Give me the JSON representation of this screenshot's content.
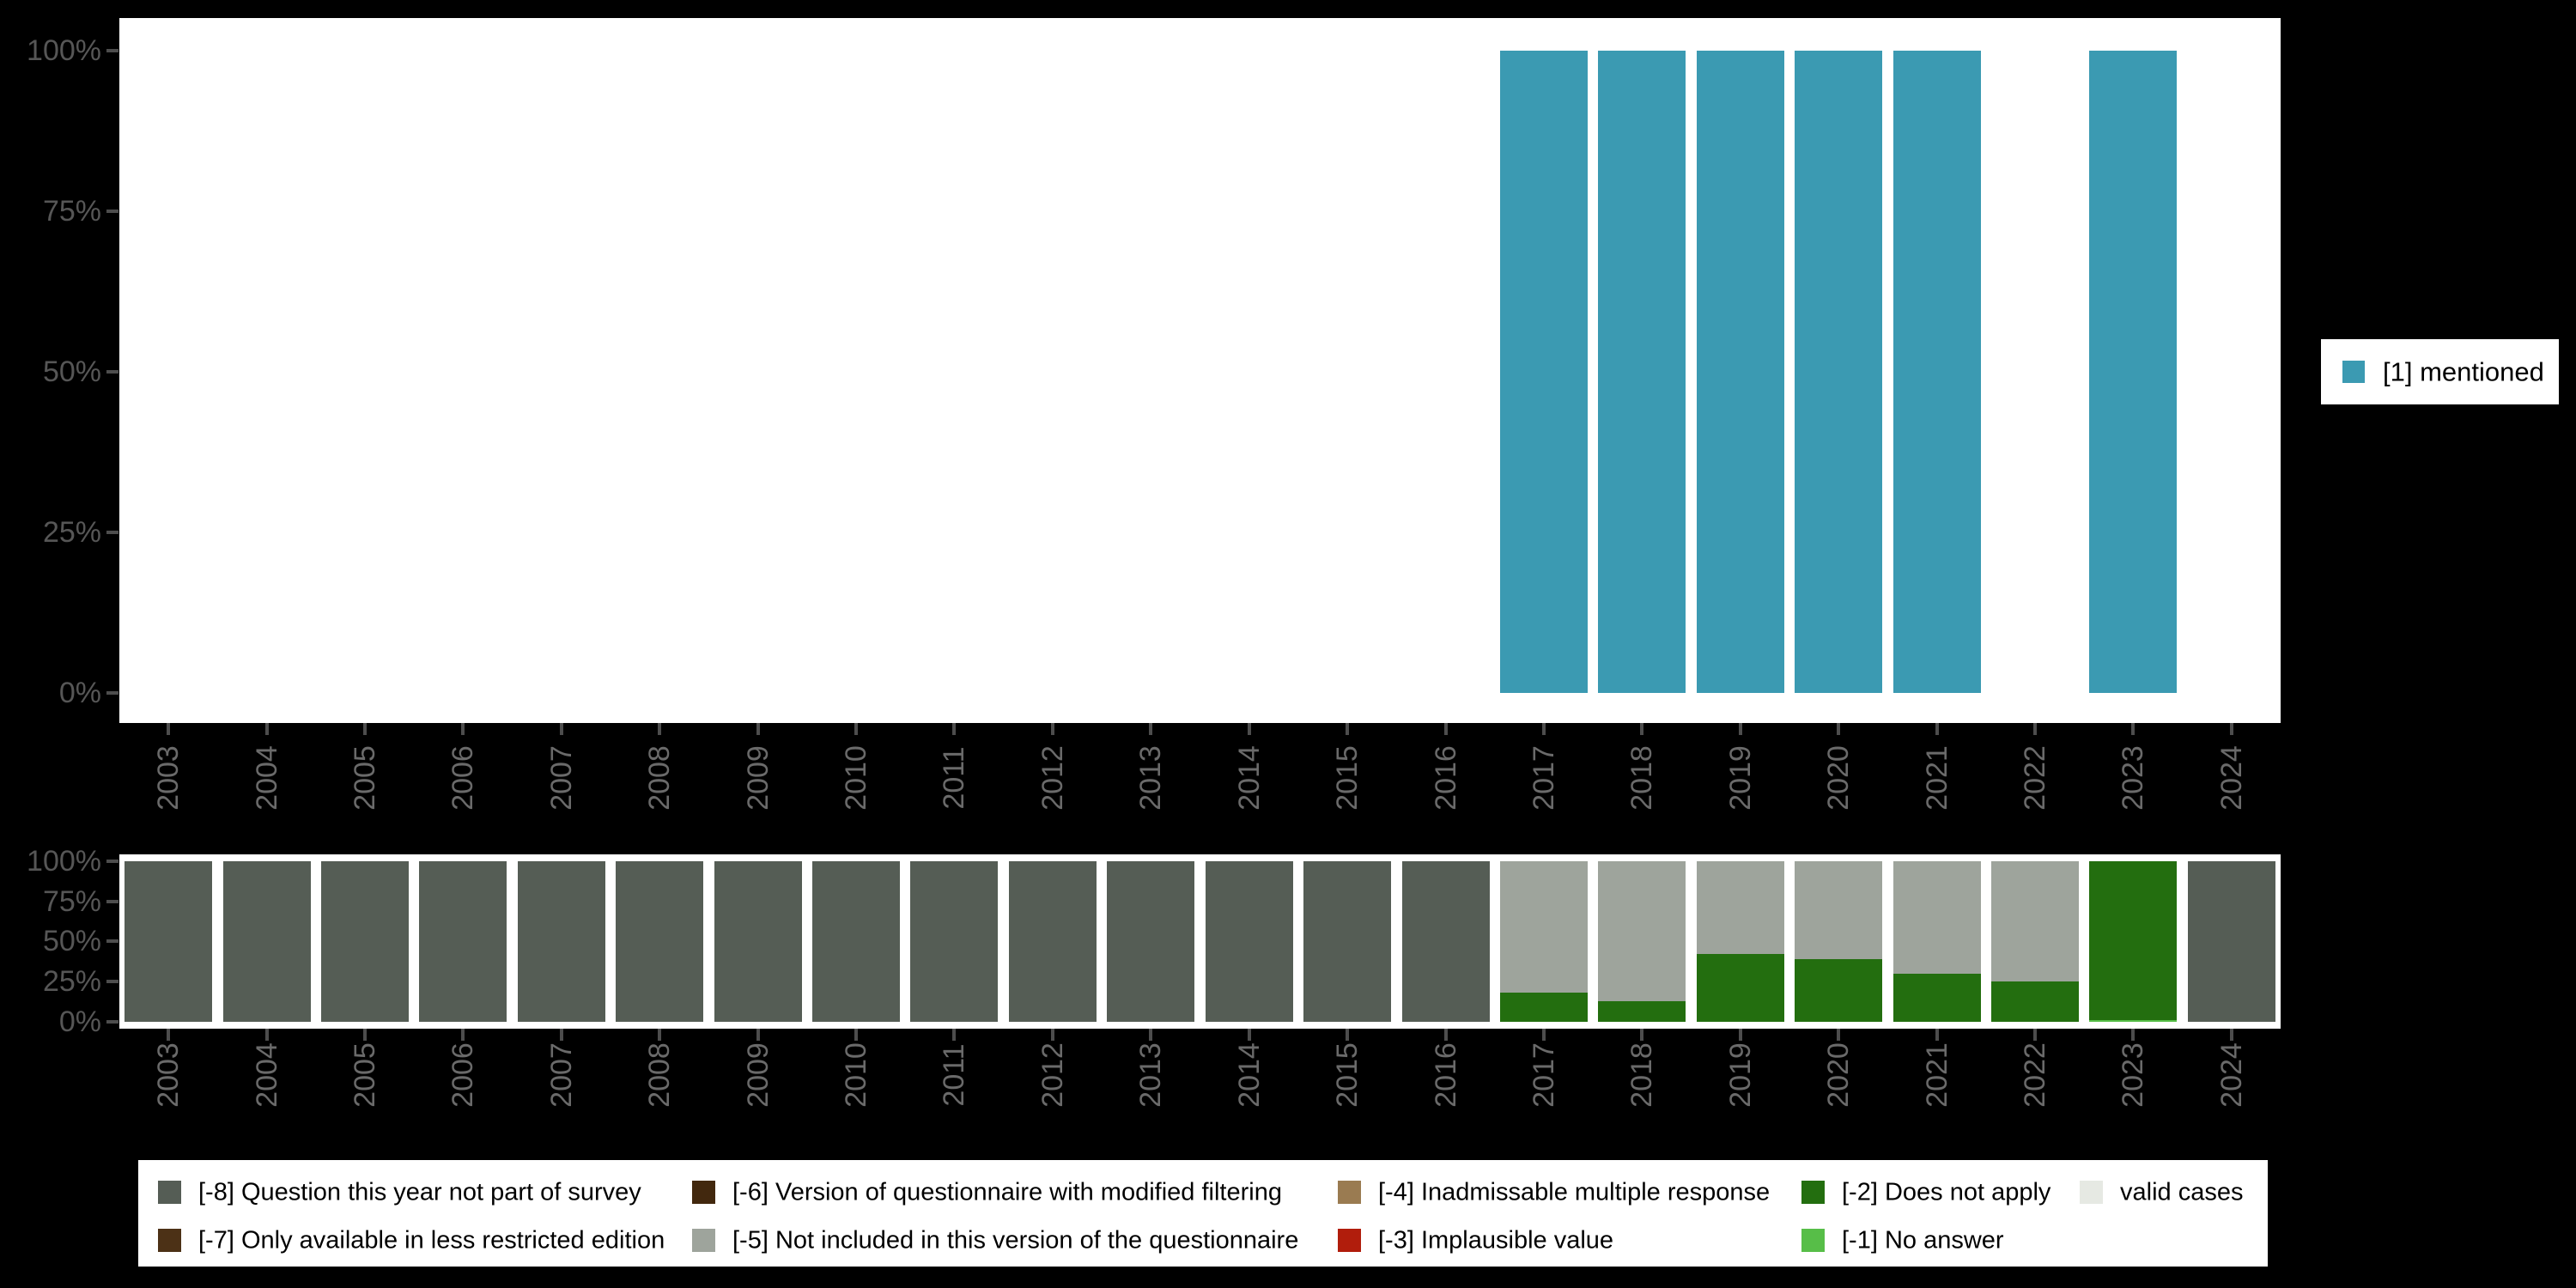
{
  "colors": {
    "background": "#000000",
    "plot_background": "#ffffff",
    "axis_text": "#565656",
    "axis_year_text": "#6a6a6a",
    "tick": "#4d4d4d",
    "mentioned_teal": "#3B9AB2"
  },
  "chart_data": [
    {
      "id": "mentioned-percent-by-year",
      "type": "bar",
      "title": "",
      "xlabel": "",
      "ylabel": "",
      "ylim": [
        0,
        100
      ],
      "yticks": [
        "100%",
        "75%",
        "50%",
        "25%",
        "0%"
      ],
      "grid": false,
      "legend_position": "right",
      "categories": [
        "2003",
        "2004",
        "2005",
        "2006",
        "2007",
        "2008",
        "2009",
        "2010",
        "2011",
        "2012",
        "2013",
        "2014",
        "2015",
        "2016",
        "2017",
        "2018",
        "2019",
        "2020",
        "2021",
        "2022",
        "2023",
        "2024"
      ],
      "series": [
        {
          "name": "[1] mentioned",
          "color": "#3B9AB2",
          "values": [
            0,
            0,
            0,
            0,
            0,
            0,
            0,
            0,
            0,
            0,
            0,
            0,
            0,
            0,
            100,
            100,
            100,
            100,
            100,
            0,
            100,
            0
          ]
        }
      ]
    },
    {
      "id": "missing-values-by-year",
      "type": "stacked-bar",
      "title": "",
      "xlabel": "",
      "ylabel": "",
      "ylim": [
        0,
        100
      ],
      "yticks": [
        "100%",
        "75%",
        "50%",
        "25%",
        "0%"
      ],
      "grid": false,
      "legend_position": "bottom",
      "categories": [
        "2003",
        "2004",
        "2005",
        "2006",
        "2007",
        "2008",
        "2009",
        "2010",
        "2011",
        "2012",
        "2013",
        "2014",
        "2015",
        "2016",
        "2017",
        "2018",
        "2019",
        "2020",
        "2021",
        "2022",
        "2023",
        "2024"
      ],
      "series": [
        {
          "name": "[-8] Question this year not part of survey",
          "color": "#555D55",
          "values": [
            100,
            100,
            100,
            100,
            100,
            100,
            100,
            100,
            100,
            100,
            100,
            100,
            100,
            100,
            0,
            0,
            0,
            0,
            0,
            0,
            0,
            100
          ]
        },
        {
          "name": "[-5] Not included in this version of the questionnaire",
          "color": "#9EA49C",
          "values": [
            0,
            0,
            0,
            0,
            0,
            0,
            0,
            0,
            0,
            0,
            0,
            0,
            0,
            0,
            82,
            87,
            58,
            61,
            70,
            75,
            0,
            0
          ]
        },
        {
          "name": "[-2] Does not apply",
          "color": "#236E0F",
          "values": [
            0,
            0,
            0,
            0,
            0,
            0,
            0,
            0,
            0,
            0,
            0,
            0,
            0,
            0,
            18,
            13,
            42,
            39,
            30,
            25,
            99,
            0
          ]
        },
        {
          "name": "[-1] No answer",
          "color": "#57BE48",
          "values": [
            0,
            0,
            0,
            0,
            0,
            0,
            0,
            0,
            0,
            0,
            0,
            0,
            0,
            0,
            0,
            0,
            0,
            0,
            0,
            0,
            1,
            0
          ]
        }
      ]
    }
  ],
  "top_legend": {
    "label": "[1] mentioned",
    "color": "#3B9AB2"
  },
  "bottom_legend": {
    "items": [
      {
        "code": "-8",
        "label": "[-8] Question this year not part of survey",
        "color": "#555D55"
      },
      {
        "code": "-7",
        "label": "[-7] Only available in less restricted edition",
        "color": "#4C3116"
      },
      {
        "code": "-6",
        "label": "[-6] Version of questionnaire with modified filtering",
        "color": "#42280E"
      },
      {
        "code": "-5",
        "label": "[-5] Not included in this version of the questionnaire",
        "color": "#9EA49C"
      },
      {
        "code": "-4",
        "label": "[-4] Inadmissable multiple response",
        "color": "#9A7B51"
      },
      {
        "code": "-3",
        "label": "[-3] Implausible value",
        "color": "#B11D0C"
      },
      {
        "code": "-2",
        "label": "[-2] Does not apply",
        "color": "#236E0F"
      },
      {
        "code": "-1",
        "label": "[-1] No answer",
        "color": "#57BE48"
      },
      {
        "code": "valid",
        "label": "valid cases",
        "color": "#E6E9E3"
      }
    ]
  }
}
